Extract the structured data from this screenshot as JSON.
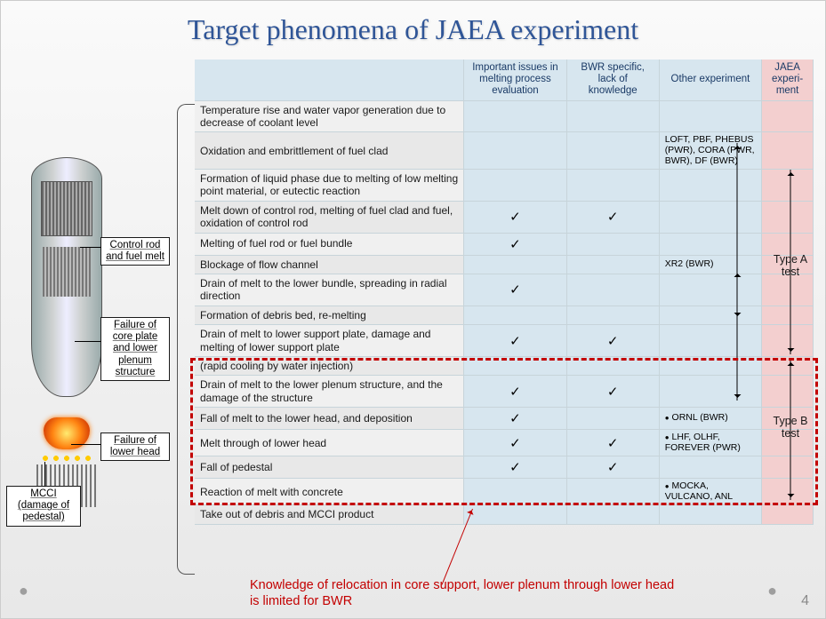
{
  "title": "Target phenomena of JAEA experiment",
  "title_fontsize": 32,
  "columns": [
    "Important issues in melting process evaluation",
    "BWR specific, lack of knowledge",
    "Other experiment",
    "JAEA experi-ment"
  ],
  "rows": [
    {
      "ph": "Temperature rise and water vapor generation due to decrease of coolant level",
      "c1": "",
      "c2": "",
      "oth": ""
    },
    {
      "ph": "Oxidation and embrittlement of fuel clad",
      "c1": "",
      "c2": "",
      "oth": "LOFT, PBF, PHEBUS (PWR), CORA (PWR, BWR), DF (BWR)"
    },
    {
      "ph": "Formation of liquid phase due to melting  of low melting point material, or eutectic reaction",
      "c1": "",
      "c2": "",
      "oth": ""
    },
    {
      "ph": "Melt down of control rod, melting of fuel clad and fuel, oxidation of control rod",
      "c1": "✓",
      "c2": "✓",
      "oth": ""
    },
    {
      "ph": "Melting of fuel rod or fuel bundle",
      "c1": "✓",
      "c2": "",
      "oth": ""
    },
    {
      "ph": "Blockage of flow channel",
      "c1": "",
      "c2": "",
      "oth": "XR2 (BWR)"
    },
    {
      "ph": "Drain of melt to the lower bundle, spreading in radial direction",
      "c1": "✓",
      "c2": "",
      "oth": ""
    },
    {
      "ph": "Formation of debris bed, re-melting",
      "c1": "",
      "c2": "",
      "oth": ""
    },
    {
      "ph": "Drain of melt to lower support plate, damage and melting of lower support plate",
      "c1": "✓",
      "c2": "✓",
      "oth": ""
    },
    {
      "ph": "(rapid cooling by water injection)",
      "c1": "",
      "c2": "",
      "oth": ""
    },
    {
      "ph": "Drain of melt to the lower plenum structure, and the damage of the structure",
      "c1": "✓",
      "c2": "✓",
      "oth": ""
    },
    {
      "ph": "Fall of melt to the lower head, and deposition",
      "c1": "✓",
      "c2": "",
      "oth": "ORNL (BWR)"
    },
    {
      "ph": "Melt through of lower head",
      "c1": "✓",
      "c2": "✓",
      "oth": "LHF, OLHF, FOREVER (PWR)"
    },
    {
      "ph": "Fall of pedestal",
      "c1": "✓",
      "c2": "✓",
      "oth": ""
    },
    {
      "ph": "Reaction of melt with concrete",
      "c1": "",
      "c2": "",
      "oth": "MOCKA, VULCANO, ANL"
    },
    {
      "ph": "Take out of debris and MCCI product",
      "c1": "",
      "c2": "",
      "oth": ""
    }
  ],
  "jaea_labels": {
    "typeA": "Type A test",
    "typeB": "Type B test"
  },
  "diagram_labels": {
    "l1": "Control rod and fuel melt",
    "l2": "Failure of core plate and lower plenum structure",
    "l3": "Failure of lower head",
    "l4": "MCCI (damage of pedestal)"
  },
  "red_note": "Knowledge of relocation in core support, lower plenum through lower head is limited for BWR",
  "page_number": "4",
  "colors": {
    "title": "#2f5597",
    "header_bg": "#d7e6ef",
    "jaea_bg": "#f3cfcf",
    "red": "#c30000",
    "border": "#c7d4da",
    "bg_top": "#fafafa",
    "bg_bot": "#e8e8e8"
  }
}
